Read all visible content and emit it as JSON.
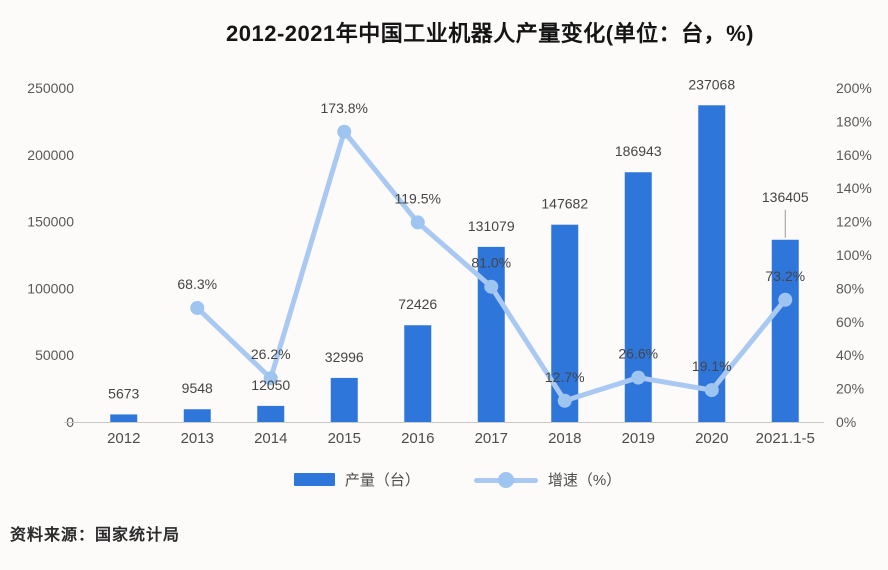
{
  "title": "2012-2021年中国工业机器人产量变化(单位：台，%)",
  "source": "资料来源：国家统计局",
  "legend": {
    "bar_label": "产量（台）",
    "line_label": "增速（%）"
  },
  "colors": {
    "bar": "#2f76db",
    "line": "#a9c9f2",
    "line_dot": "#9ec4f0",
    "axis_line": "#c9c9c9",
    "leader_line": "#9a9a9a"
  },
  "chart_data": {
    "type": "bar",
    "categories": [
      "2012",
      "2013",
      "2014",
      "2015",
      "2016",
      "2017",
      "2018",
      "2019",
      "2020",
      "2021.1-5"
    ],
    "series": [
      {
        "name": "产量（台）",
        "type": "bar",
        "axis": "left",
        "values": [
          5673,
          9548,
          12050,
          32996,
          72426,
          131079,
          147682,
          186943,
          237068,
          136405
        ],
        "labels": [
          "5673",
          "9548",
          "12050",
          "32996",
          "72426",
          "131079",
          "147682",
          "186943",
          "237068",
          "136405"
        ]
      },
      {
        "name": "增速（%）",
        "type": "line",
        "axis": "right",
        "values": [
          null,
          68.3,
          26.2,
          173.8,
          119.5,
          81.0,
          12.7,
          26.6,
          19.1,
          73.2
        ],
        "labels": [
          null,
          "68.3%",
          "26.2%",
          "173.8%",
          "119.5%",
          "81.0%",
          "12.7%",
          "26.6%",
          "19.1%",
          "73.2%"
        ]
      }
    ],
    "left_axis": {
      "min": 0,
      "max": 250000,
      "ticks": [
        0,
        50000,
        100000,
        150000,
        200000,
        250000
      ],
      "suffix": ""
    },
    "right_axis": {
      "min": 0,
      "max": 200,
      "ticks": [
        0,
        20,
        40,
        60,
        80,
        100,
        120,
        140,
        160,
        180,
        200
      ],
      "suffix": "%"
    },
    "leader_line_category": "2021.1-5",
    "grid": false,
    "legend_position": "bottom",
    "title": "2012-2021年中国工业机器人产量变化(单位：台，%)",
    "xlabel": "",
    "ylabel_left": "台",
    "ylabel_right": "%"
  }
}
